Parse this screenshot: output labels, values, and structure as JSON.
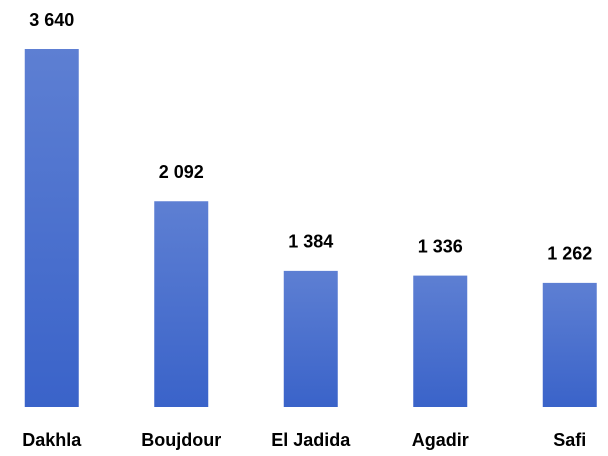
{
  "chart_data": {
    "type": "bar",
    "categories": [
      "Dakhla",
      "Boujdour",
      "El Jadida",
      "Agadir",
      "Safi"
    ],
    "values": [
      3640,
      2092,
      1384,
      1336,
      1262
    ],
    "value_labels": [
      "3 640",
      "2 092",
      "1 384",
      "1 336",
      "1 262"
    ],
    "color": "#3a63c9"
  }
}
